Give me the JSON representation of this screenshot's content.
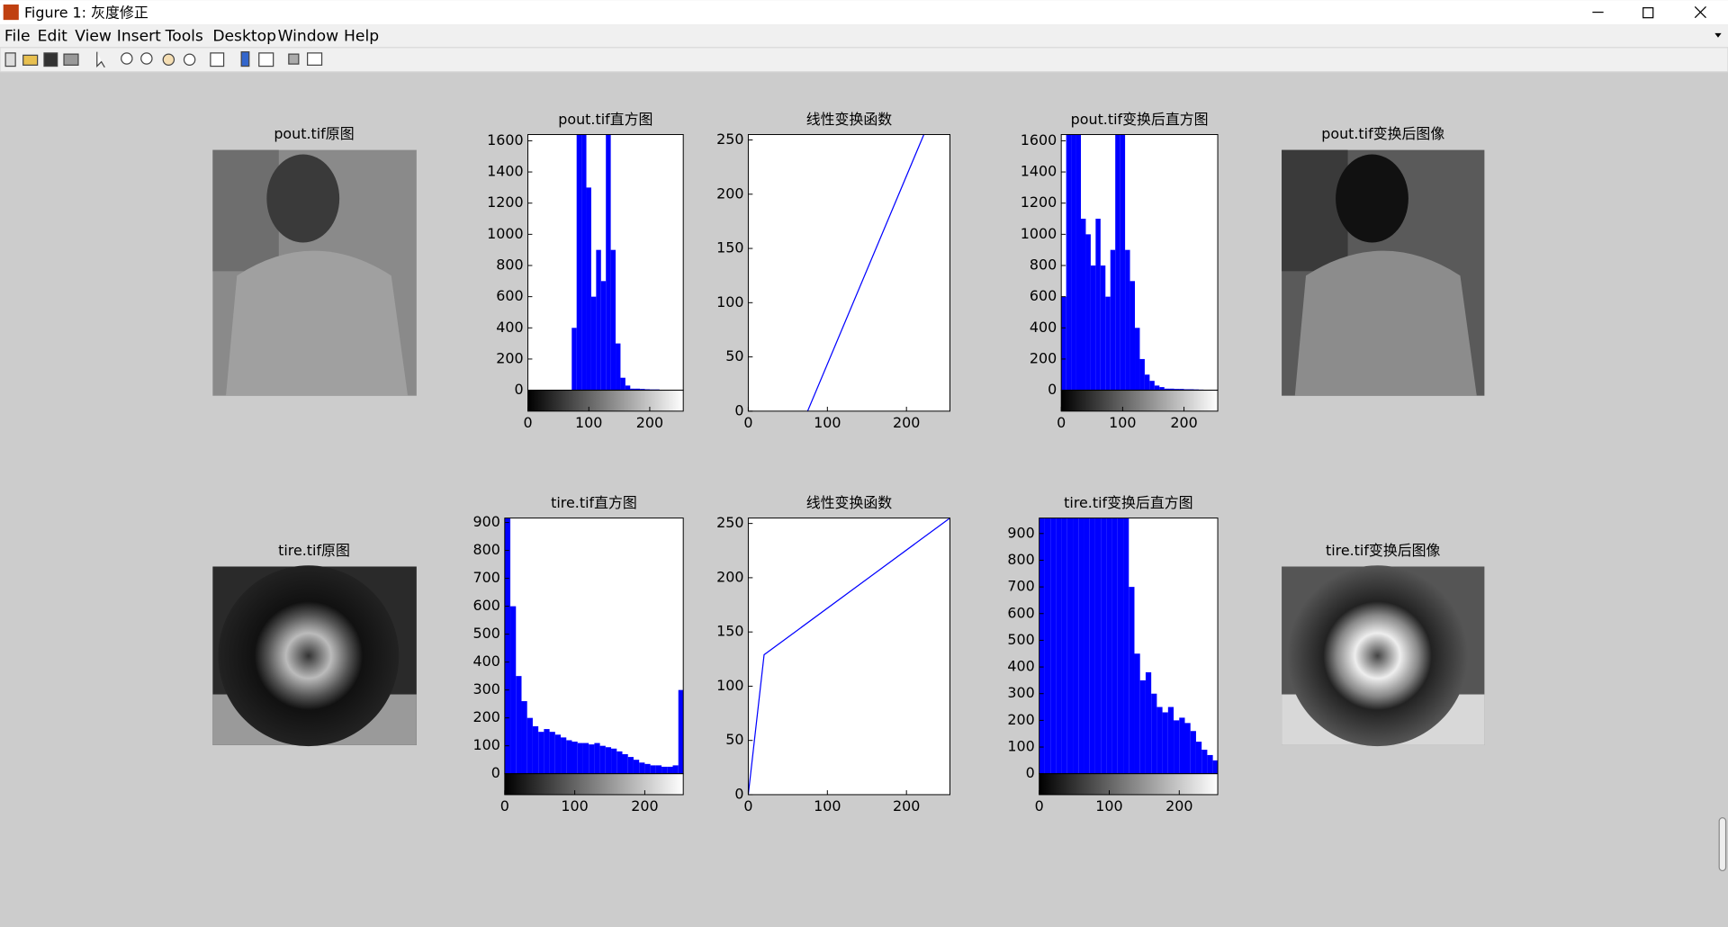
{
  "window": {
    "title": "Figure 1: 灰度修正",
    "menu": [
      "File",
      "Edit",
      "View",
      "Insert",
      "Tools",
      "Desktop",
      "Window",
      "Help"
    ]
  },
  "images": [
    {
      "title": "pout.tif原图"
    },
    {
      "title": "pout.tif变换后图像"
    },
    {
      "title": "tire.tif原图"
    },
    {
      "title": "tire.tif变换后图像"
    }
  ],
  "chart_data": [
    {
      "type": "histogram",
      "title": "pout.tif直方图",
      "color": "#0000ff",
      "bins": [
        0,
        8,
        16,
        24,
        32,
        40,
        48,
        56,
        64,
        72,
        80,
        88,
        96,
        104,
        112,
        120,
        128,
        136,
        144,
        152,
        160,
        168,
        176,
        184,
        192,
        200,
        208,
        216,
        224,
        232,
        240,
        248,
        256
      ],
      "values": [
        0,
        0,
        0,
        0,
        0,
        0,
        0,
        0,
        0,
        400,
        1640,
        1640,
        1300,
        600,
        900,
        700,
        1640,
        900,
        300,
        80,
        30,
        10,
        10,
        8,
        6,
        5,
        5,
        3,
        2,
        0,
        0,
        0
      ],
      "xlim": [
        0,
        255
      ],
      "xticks": [
        0,
        100,
        200
      ],
      "ylim": [
        0,
        1640
      ],
      "yticks": [
        0,
        200,
        400,
        600,
        800,
        1000,
        1200,
        1400,
        1600
      ]
    },
    {
      "type": "line",
      "title": "线性变换函数",
      "color": "#0000ff",
      "x": [
        75,
        222
      ],
      "y": [
        0,
        255
      ],
      "xlim": [
        0,
        255
      ],
      "xticks": [
        0,
        100,
        200
      ],
      "ylim": [
        0,
        255
      ],
      "yticks": [
        0,
        50,
        100,
        150,
        200,
        250
      ]
    },
    {
      "type": "histogram",
      "title": "pout.tif变换后直方图",
      "color": "#0000ff",
      "bins": [
        0,
        8,
        16,
        24,
        32,
        40,
        48,
        56,
        64,
        72,
        80,
        88,
        96,
        104,
        112,
        120,
        128,
        136,
        144,
        152,
        160,
        168,
        176,
        184,
        192,
        200,
        208,
        216,
        224,
        232,
        240,
        248,
        256
      ],
      "values": [
        600,
        1640,
        1640,
        1640,
        1100,
        1000,
        800,
        1100,
        800,
        600,
        900,
        1640,
        1640,
        900,
        700,
        400,
        200,
        100,
        60,
        30,
        20,
        10,
        10,
        8,
        8,
        6,
        6,
        5,
        4,
        3,
        3,
        2
      ],
      "xlim": [
        0,
        255
      ],
      "xticks": [
        0,
        100,
        200
      ],
      "ylim": [
        0,
        1640
      ],
      "yticks": [
        0,
        200,
        400,
        600,
        800,
        1000,
        1200,
        1400,
        1600
      ]
    },
    {
      "type": "histogram",
      "title": "tire.tif直方图",
      "color": "#0000ff",
      "bins": [
        0,
        8,
        16,
        24,
        32,
        40,
        48,
        56,
        64,
        72,
        80,
        88,
        96,
        104,
        112,
        120,
        128,
        136,
        144,
        152,
        160,
        168,
        176,
        184,
        192,
        200,
        208,
        216,
        224,
        232,
        240,
        248,
        256
      ],
      "values": [
        916,
        600,
        350,
        260,
        200,
        170,
        150,
        160,
        150,
        140,
        130,
        120,
        115,
        110,
        110,
        105,
        110,
        100,
        95,
        90,
        80,
        70,
        60,
        50,
        40,
        35,
        30,
        30,
        25,
        25,
        30,
        300
      ],
      "xlim": [
        0,
        255
      ],
      "xticks": [
        0,
        100,
        200
      ],
      "ylim": [
        0,
        916
      ],
      "yticks": [
        0,
        100,
        200,
        300,
        400,
        500,
        600,
        700,
        800,
        900
      ]
    },
    {
      "type": "line",
      "title": "线性变换函数",
      "color": "#0000ff",
      "x": [
        0,
        20,
        255
      ],
      "y": [
        0,
        129,
        255
      ],
      "xlim": [
        0,
        255
      ],
      "xticks": [
        0,
        100,
        200
      ],
      "ylim": [
        0,
        255
      ],
      "yticks": [
        0,
        50,
        100,
        150,
        200,
        250
      ]
    },
    {
      "type": "histogram",
      "title": "tire.tif变换后直方图",
      "color": "#0000ff",
      "bins": [
        0,
        8,
        16,
        24,
        32,
        40,
        48,
        56,
        64,
        72,
        80,
        88,
        96,
        104,
        112,
        120,
        128,
        136,
        144,
        152,
        160,
        168,
        176,
        184,
        192,
        200,
        208,
        216,
        224,
        232,
        240,
        248,
        256
      ],
      "values": [
        958,
        958,
        958,
        958,
        958,
        958,
        958,
        958,
        958,
        958,
        958,
        958,
        958,
        958,
        958,
        958,
        700,
        450,
        350,
        380,
        300,
        250,
        230,
        250,
        200,
        210,
        190,
        160,
        120,
        90,
        70,
        50
      ],
      "xlim": [
        0,
        255
      ],
      "xticks": [
        0,
        100,
        200
      ],
      "ylim": [
        0,
        958
      ],
      "yticks": [
        0,
        100,
        200,
        300,
        400,
        500,
        600,
        700,
        800,
        900
      ]
    }
  ]
}
